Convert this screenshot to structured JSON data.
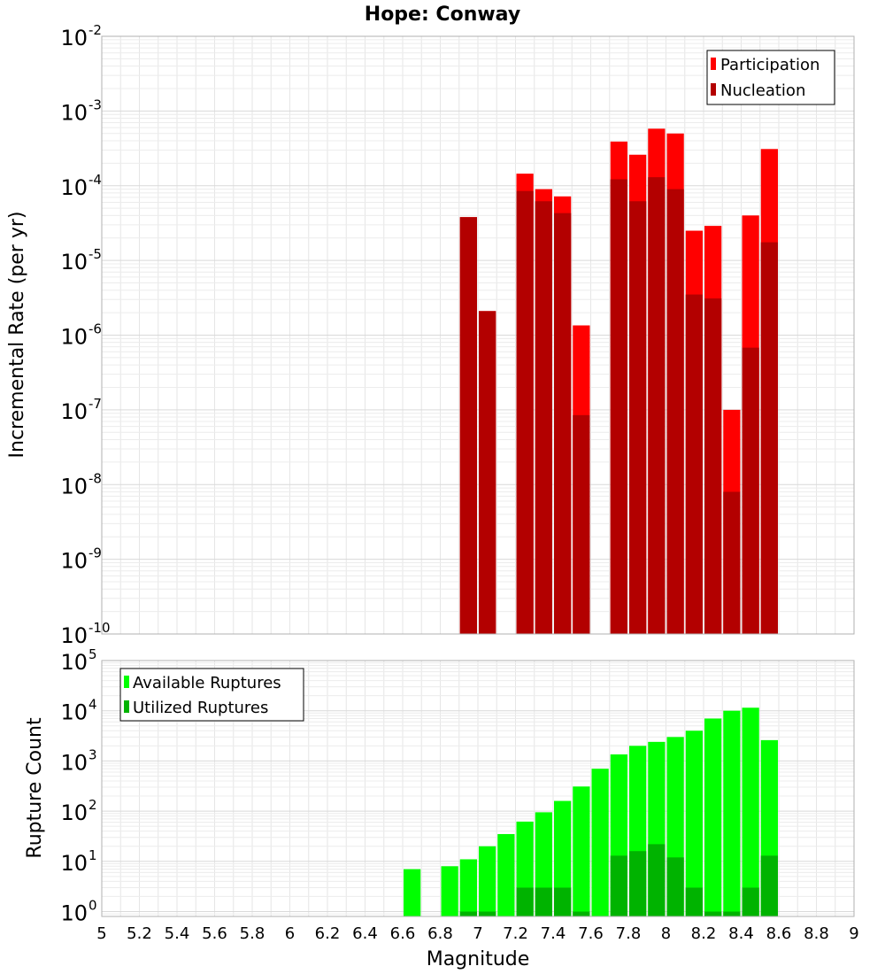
{
  "chart_data": [
    {
      "type": "bar",
      "title": "Hope: Conway",
      "ylabel": "Incremental Rate (per yr)",
      "xlabel": "",
      "xlim": [
        5,
        9
      ],
      "ylim": [
        1e-10,
        0.01
      ],
      "yscale": "log",
      "grid": true,
      "legend_position": "top-right",
      "x": [
        6.95,
        7.05,
        7.25,
        7.35,
        7.45,
        7.55,
        7.75,
        7.85,
        7.95,
        8.05,
        8.15,
        8.25,
        8.35,
        8.45,
        8.55
      ],
      "series": [
        {
          "name": "Participation",
          "color": "#ff0000",
          "values": [
            3.8e-05,
            2.1e-06,
            0.000145,
            9e-05,
            7.2e-05,
            1.35e-06,
            0.00039,
            0.00026,
            0.00058,
            0.0005,
            2.5e-05,
            2.9e-05,
            1e-07,
            4e-05,
            0.00031
          ]
        },
        {
          "name": "Nucleation",
          "color": "#b30000",
          "values": [
            3.8e-05,
            2.1e-06,
            8.5e-05,
            6.2e-05,
            4.3e-05,
            8.5e-08,
            0.000122,
            6.2e-05,
            0.00013,
            9e-05,
            3.5e-06,
            3.1e-06,
            8e-09,
            6.8e-07,
            1.75e-05
          ]
        }
      ],
      "yticks": [
        {
          "base": "10",
          "exp": "-2"
        },
        {
          "base": "10",
          "exp": "-3"
        },
        {
          "base": "10",
          "exp": "-4"
        },
        {
          "base": "10",
          "exp": "-5"
        },
        {
          "base": "10",
          "exp": "-6"
        },
        {
          "base": "10",
          "exp": "-7"
        },
        {
          "base": "10",
          "exp": "-8"
        },
        {
          "base": "10",
          "exp": "-9"
        },
        {
          "base": "10",
          "exp": "-10"
        }
      ]
    },
    {
      "type": "bar",
      "title": "",
      "ylabel": "Rupture Count",
      "xlabel": "Magnitude",
      "xlim": [
        5,
        9
      ],
      "ylim": [
        0.8,
        100000.0
      ],
      "yscale": "log",
      "grid": true,
      "legend_position": "top-left",
      "x": [
        6.65,
        6.85,
        6.95,
        7.05,
        7.15,
        7.25,
        7.35,
        7.45,
        7.55,
        7.65,
        7.75,
        7.85,
        7.95,
        8.05,
        8.15,
        8.25,
        8.35,
        8.45,
        8.55
      ],
      "series": [
        {
          "name": "Available Ruptures",
          "color": "#00ff00",
          "values": [
            7,
            8,
            11,
            20,
            35,
            62,
            95,
            160,
            310,
            700,
            1350,
            2000,
            2400,
            3000,
            4000,
            7000,
            10000,
            11500,
            2600
          ]
        },
        {
          "name": "Utilized Ruptures",
          "color": "#00b300",
          "values": [
            0,
            0,
            1,
            1,
            0,
            3,
            3,
            3,
            1,
            0,
            13,
            16,
            22,
            12,
            3,
            1,
            1,
            3,
            13
          ]
        }
      ],
      "yticks": [
        {
          "base": "10",
          "exp": "5"
        },
        {
          "base": "10",
          "exp": "4"
        },
        {
          "base": "10",
          "exp": "3"
        },
        {
          "base": "10",
          "exp": "2"
        },
        {
          "base": "10",
          "exp": "1"
        },
        {
          "base": "10",
          "exp": "0"
        }
      ],
      "xticks": [
        "5",
        "5.2",
        "5.4",
        "5.6",
        "5.8",
        "6",
        "6.2",
        "6.4",
        "6.6",
        "6.8",
        "7",
        "7.2",
        "7.4",
        "7.6",
        "7.8",
        "8",
        "8.2",
        "8.4",
        "8.6",
        "8.8",
        "9"
      ]
    }
  ]
}
